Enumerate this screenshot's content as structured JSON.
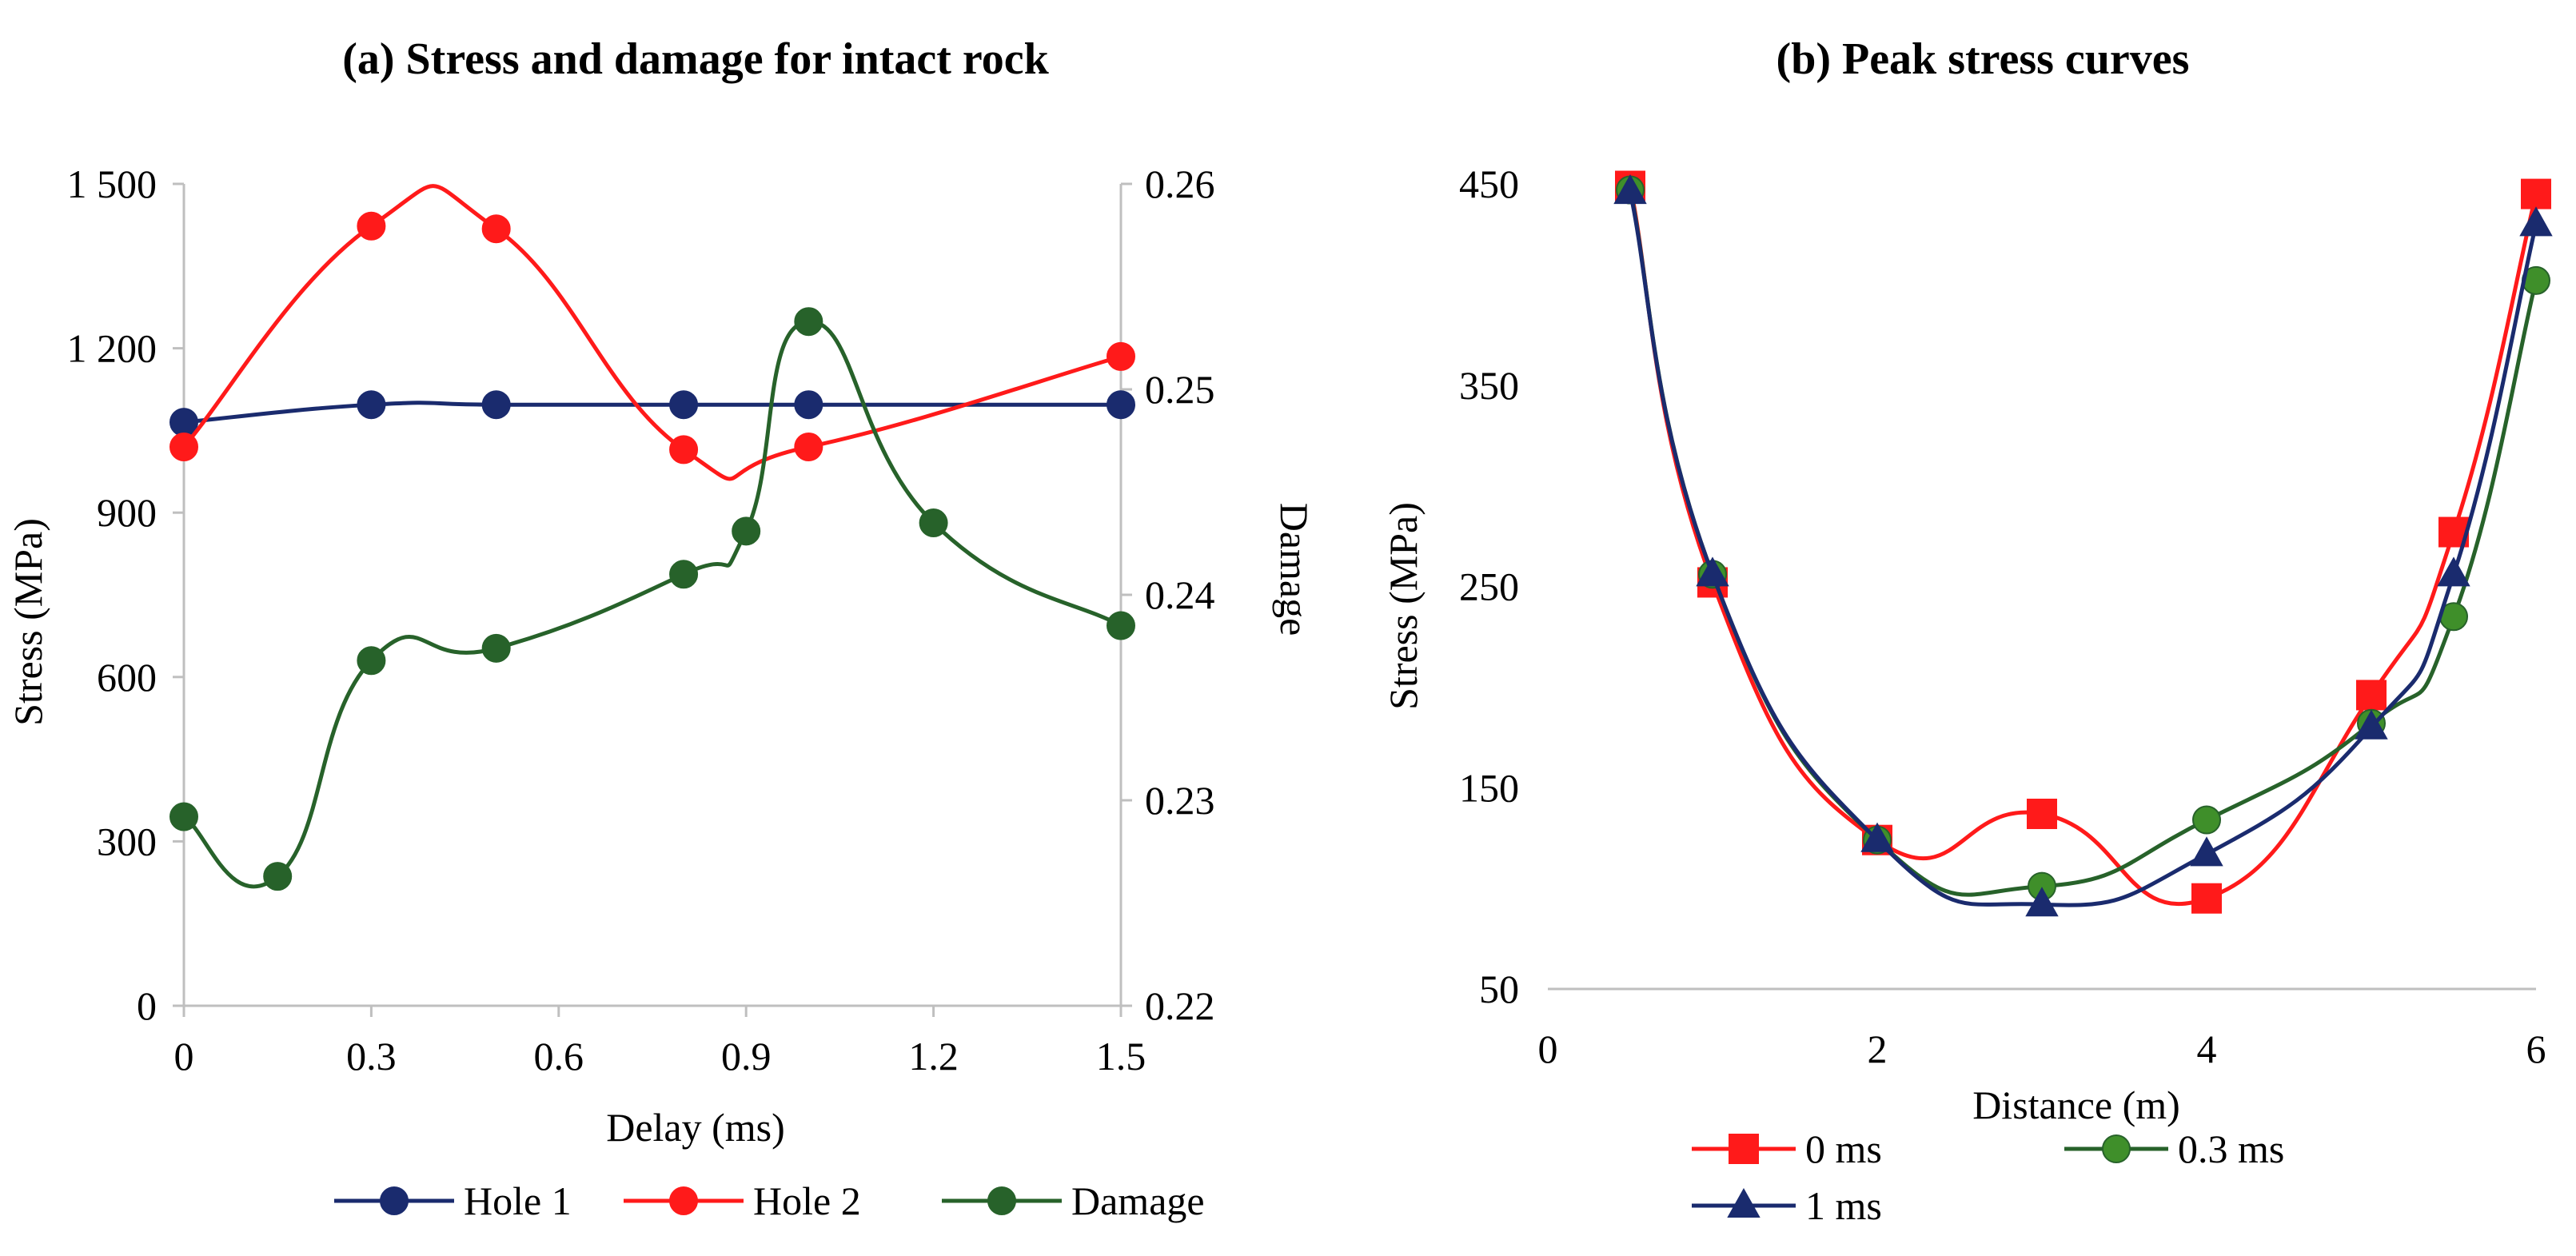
{
  "chart_data": [
    {
      "id": "a",
      "type": "line",
      "title": "(a)   Stress and damage for intact rock",
      "xlabel": "Delay (ms)",
      "ylabel": "Stress (MPa)",
      "y2label": "Damage",
      "xlim": [
        0,
        1.5
      ],
      "ylim": [
        0,
        1500
      ],
      "y2lim": [
        0.22,
        0.26
      ],
      "xticks": [
        0,
        0.3,
        0.6,
        0.9,
        1.2,
        1.5
      ],
      "xtick_labels": [
        "0",
        "0.3",
        "0.6",
        "0.9",
        "1.2",
        "1.5"
      ],
      "yticks": [
        0,
        300,
        600,
        900,
        1200,
        1500
      ],
      "ytick_labels": [
        "0",
        "300",
        "600",
        "900",
        "1 200",
        "1 500"
      ],
      "y2ticks": [
        0.22,
        0.23,
        0.24,
        0.25,
        0.26
      ],
      "y2tick_labels": [
        "0.22",
        "0.23",
        "0.24",
        "0.25",
        "0.26"
      ],
      "legend_position": "bottom",
      "series": [
        {
          "name": "Hole 1",
          "axis": "left",
          "color": "#1a2b6e",
          "marker": "circle",
          "x": [
            0,
            0.3,
            0.5,
            0.8,
            1.0,
            1.5
          ],
          "y": [
            1065,
            1097,
            1097,
            1097,
            1097,
            1097
          ]
        },
        {
          "name": "Hole 2",
          "axis": "left",
          "color": "#ff1a1a",
          "marker": "circle",
          "x": [
            0,
            0.3,
            0.5,
            0.8,
            1.0,
            1.5
          ],
          "y": [
            1020,
            1423,
            1418,
            1015,
            1020,
            1185
          ]
        },
        {
          "name": "Damage",
          "axis": "right",
          "color": "#27622a",
          "marker": "circle",
          "x": [
            0,
            0.15,
            0.3,
            0.5,
            0.8,
            0.9,
            1.0,
            1.2,
            1.5
          ],
          "y": [
            0.2292,
            0.2263,
            0.2368,
            0.2374,
            0.241,
            0.2431,
            0.2533,
            0.2435,
            0.2385
          ]
        }
      ]
    },
    {
      "id": "b",
      "type": "line",
      "title": "(b)   Peak stress curves",
      "xlabel": "Distance (m)",
      "ylabel": "Stress (MPa)",
      "xlim": [
        0,
        6
      ],
      "ylim": [
        50,
        450
      ],
      "xticks": [
        0,
        2,
        4,
        6
      ],
      "xtick_labels": [
        "0",
        "2",
        "4",
        "6"
      ],
      "yticks": [
        50,
        150,
        250,
        350,
        450
      ],
      "ytick_labels": [
        "50",
        "150",
        "250",
        "350",
        "450"
      ],
      "legend_position": "bottom",
      "series": [
        {
          "name": "0 ms",
          "color": "#ff1a1a",
          "marker": "square",
          "x": [
            0.5,
            1,
            2,
            3,
            4,
            5,
            5.5,
            6
          ],
          "y": [
            449,
            252,
            124,
            137,
            95,
            196,
            277,
            445
          ]
        },
        {
          "name": "0.3 ms",
          "color": "#27622a",
          "marker": "circle",
          "x": [
            0.5,
            1,
            2,
            3,
            4,
            5,
            5.5,
            6
          ],
          "y": [
            447,
            256,
            124,
            101,
            134,
            182,
            235,
            402
          ]
        },
        {
          "name": "1 ms",
          "color": "#1a2b6e",
          "marker": "triangle",
          "x": [
            0.5,
            1,
            2,
            3,
            4,
            5,
            5.5,
            6
          ],
          "y": [
            446,
            256,
            124,
            92,
            117,
            180,
            256,
            430
          ]
        }
      ]
    }
  ]
}
